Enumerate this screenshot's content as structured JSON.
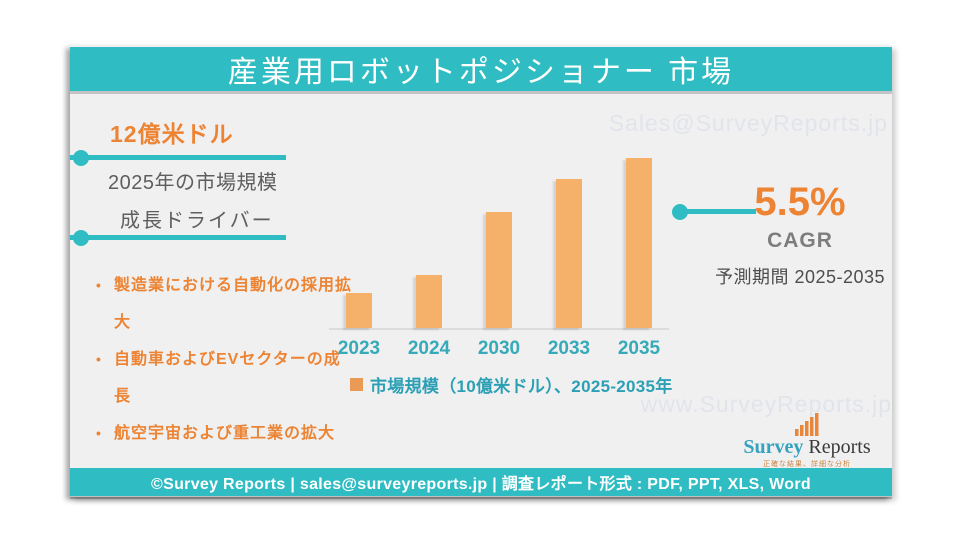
{
  "colors": {
    "teal_banner": "#2fbcc3",
    "teal_text": "#36aab8",
    "accent_orange": "#ec8433",
    "bar_orange": "#f5b169",
    "gray_text": "#5e5e5e",
    "cagr_gray": "#7d7d7d",
    "watermark_gray": "#e1e4eb",
    "card_background": "#f1f0f1"
  },
  "header": {
    "title": "産業用ロボットポジショナー 市場"
  },
  "highlights": {
    "market_value": "12億米ドル",
    "market_value_caption": "2025年の市場規模",
    "growth_drivers_title": "成長ドライバー",
    "growth_drivers": [
      "製造業における自動化の採用拡大",
      "自動車およびEVセクターの成長",
      "航空宇宙および重工業の拡大"
    ]
  },
  "cagr": {
    "value": "5.5%",
    "label": "CAGR",
    "period": "予測期間 2025-2035"
  },
  "chart_data": {
    "type": "bar",
    "categories": [
      "2023",
      "2024",
      "2030",
      "2033",
      "2035"
    ],
    "values": [
      0.42,
      0.64,
      1.4,
      1.8,
      2.05
    ],
    "series_name": "市場規模（10億米ドル）、2025-2035年",
    "title": "",
    "xlabel": "",
    "ylabel": "市場規模（10億米ドル）",
    "ylim": [
      0,
      2.23
    ],
    "grid": false,
    "legend_position": "bottom",
    "bar_color": "#f5b169"
  },
  "legend": {
    "label": "市場規模（10億米ドル）、2025-2035年"
  },
  "watermarks": {
    "top": "Sales@SurveyReports.jp",
    "bottom": "www.SurveyReports.jp"
  },
  "logo": {
    "name_part1": "Survey",
    "name_part2": " Reports",
    "tagline": "正確な結果、詳細な分析"
  },
  "footer": {
    "text": "©Survey Reports | sales@surveyreports.jp |  調査レポート形式 : PDF, PPT, XLS, Word"
  }
}
